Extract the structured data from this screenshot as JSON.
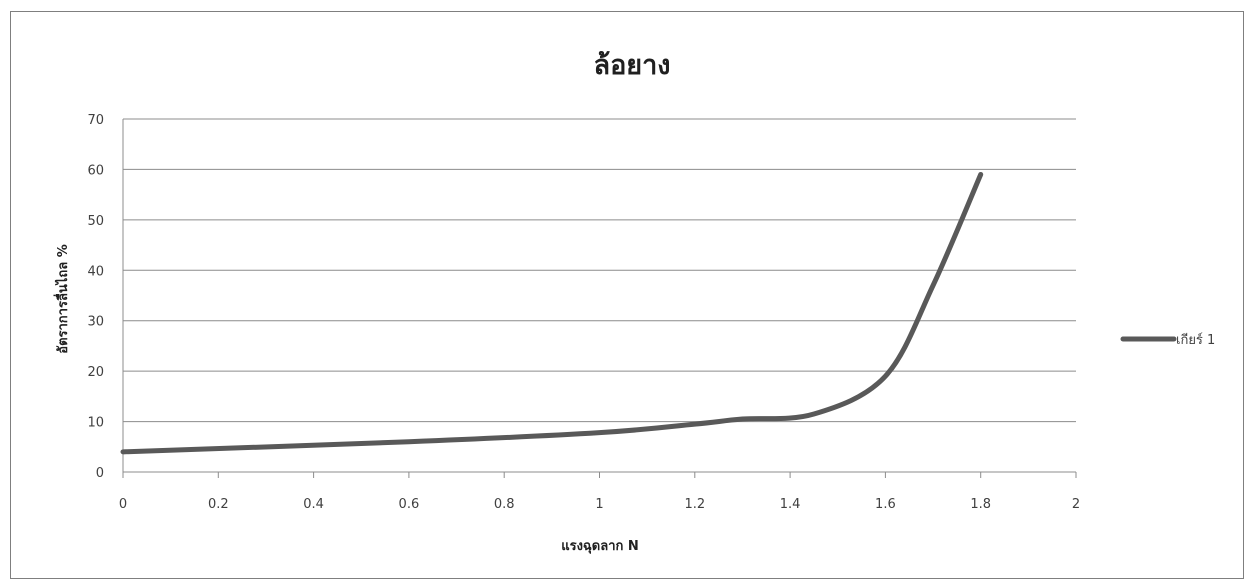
{
  "chart_data": {
    "type": "line",
    "title": "ล้อยาง",
    "xlabel": "แรงฉุดลาก N",
    "ylabel": "อัตราการลื่นไถล %",
    "xlim": [
      0,
      2
    ],
    "ylim": [
      0,
      70
    ],
    "x_ticks": [
      "0",
      "0.2",
      "0.4",
      "0.6",
      "0.8",
      "1",
      "1.2",
      "1.4",
      "1.6",
      "1.8",
      "2"
    ],
    "y_ticks": [
      "0",
      "10",
      "20",
      "30",
      "40",
      "50",
      "60",
      "70"
    ],
    "grid": "horizontal",
    "legend_position": "right",
    "series": [
      {
        "name": "เกียร์ 1",
        "color": "#595959",
        "points": [
          [
            0,
            4
          ],
          [
            0.6,
            6
          ],
          [
            1.0,
            7.8
          ],
          [
            1.2,
            9.5
          ],
          [
            1.3,
            10.5
          ],
          [
            1.45,
            11.5
          ],
          [
            1.6,
            19
          ],
          [
            1.7,
            37
          ],
          [
            1.8,
            59
          ]
        ]
      }
    ]
  }
}
